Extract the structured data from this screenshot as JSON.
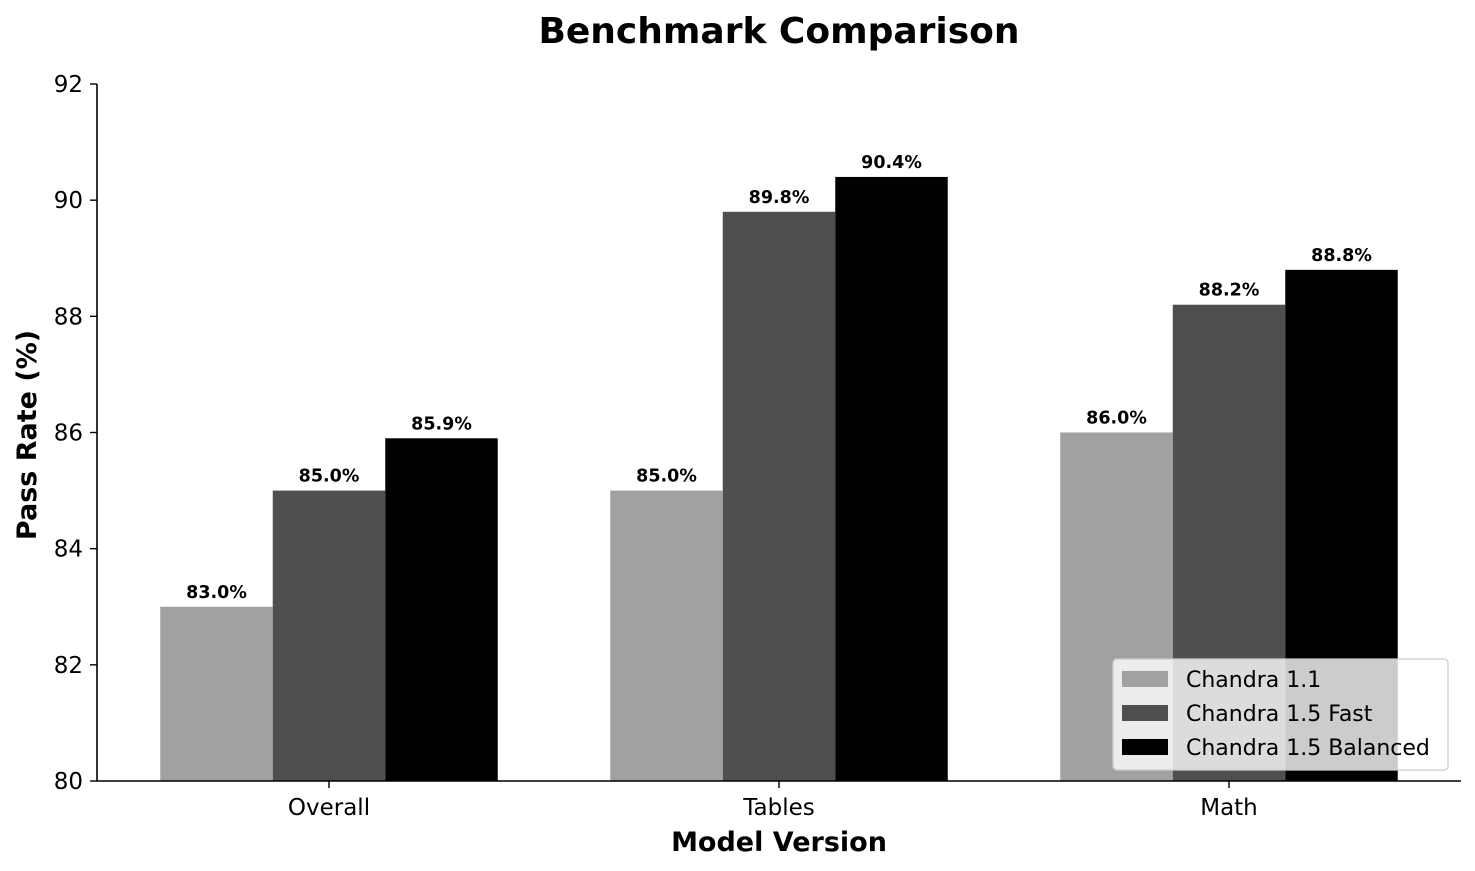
{
  "chart_data": {
    "type": "bar",
    "title": "Benchmark Comparison",
    "xlabel": "Model Version",
    "ylabel": "Pass Rate (%)",
    "categories": [
      "Overall",
      "Tables",
      "Math"
    ],
    "ylim": [
      80,
      92
    ],
    "yticks": [
      80,
      82,
      84,
      86,
      88,
      90,
      92
    ],
    "series": [
      {
        "name": "Chandra 1.1",
        "color": "#a1a1a1",
        "values": [
          83.0,
          85.0,
          86.0
        ],
        "labels": [
          "83.0%",
          "85.0%",
          "86.0%"
        ]
      },
      {
        "name": "Chandra 1.5 Fast",
        "color": "#4f4f4f",
        "values": [
          85.0,
          89.8,
          88.2
        ],
        "labels": [
          "85.0%",
          "89.8%",
          "88.2%"
        ]
      },
      {
        "name": "Chandra 1.5 Balanced",
        "color": "#000000",
        "values": [
          85.9,
          90.4,
          88.8
        ],
        "labels": [
          "85.9%",
          "90.4%",
          "88.8%"
        ]
      }
    ],
    "grid": false,
    "legend_position": "lower-right"
  }
}
